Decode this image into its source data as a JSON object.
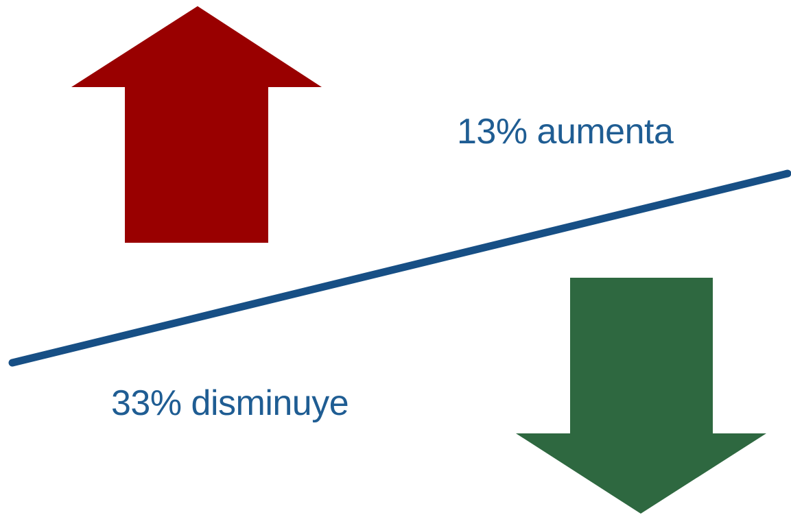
{
  "labels": {
    "increase": "13% aumenta",
    "decrease": "33% disminuye"
  },
  "icons": {
    "up_arrow": "arrow-up-icon",
    "down_arrow": "arrow-down-icon"
  },
  "colors": {
    "background": "#ffffff",
    "up_arrow": "#990000",
    "down_arrow": "#2e6840",
    "divider_line": "#174f85",
    "text": "#1f5d93"
  }
}
